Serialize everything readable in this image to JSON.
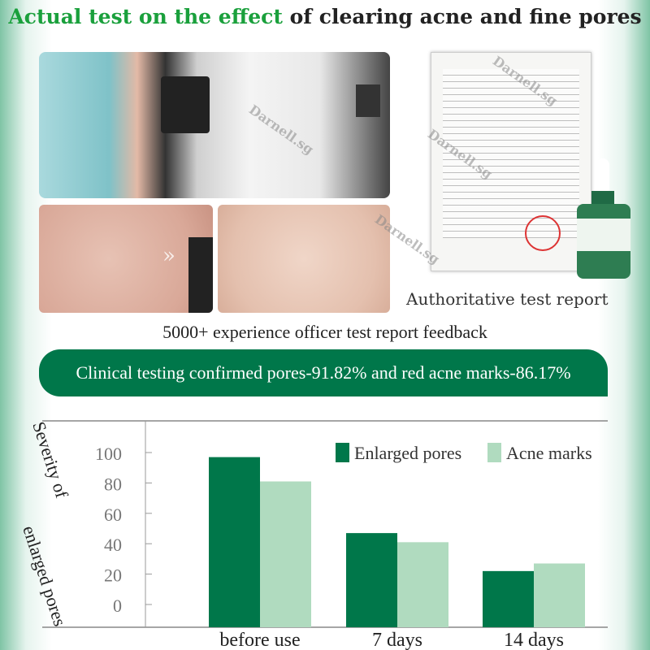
{
  "title": {
    "green": "Actual test on the effect",
    "rest": " of clearing acne and fine pores"
  },
  "cert_caption": "Authoritative test report",
  "feedback": "5000+ experience officer test report feedback",
  "banner": "Clinical testing confirmed pores-91.82% and red acne marks-86.17%",
  "watermark": "Darnell.sg",
  "colors": {
    "accent": "#00774a",
    "title_green": "#1aa03c",
    "series_dark": "#00774a",
    "series_light": "#b0dbbf"
  },
  "chart_data": {
    "type": "bar",
    "title": "",
    "ylabel": "Severity of enlarged pores",
    "xlabel": "",
    "categories": [
      "before use",
      "7 days",
      "14 days"
    ],
    "yticks": [
      "100",
      "80",
      "60",
      "40",
      "20",
      "0"
    ],
    "ylim": [
      0,
      100
    ],
    "legend_position": "top-right",
    "grid": false,
    "series": [
      {
        "name": "Enlarged pores",
        "color": "#00774a",
        "values": [
          97,
          47,
          22
        ]
      },
      {
        "name": "Acne marks",
        "color": "#b0dbbf",
        "values": [
          81,
          41,
          27
        ]
      }
    ]
  }
}
